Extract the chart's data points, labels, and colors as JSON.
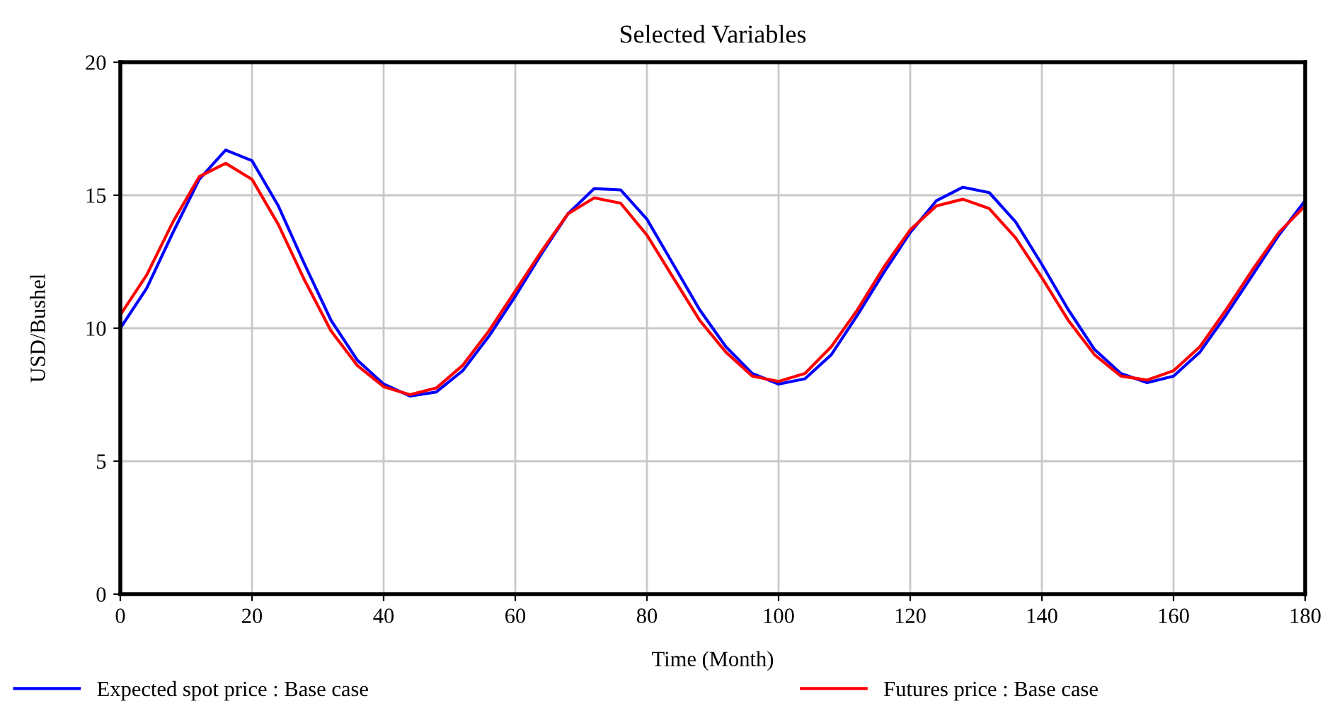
{
  "chart_data": {
    "type": "line",
    "title": "Selected Variables",
    "xlabel": "Time (Month)",
    "ylabel": "USD/Bushel",
    "x": [
      0,
      4,
      8,
      12,
      16,
      20,
      24,
      28,
      32,
      36,
      40,
      44,
      48,
      52,
      56,
      60,
      64,
      68,
      72,
      76,
      80,
      84,
      88,
      92,
      96,
      100,
      104,
      108,
      112,
      116,
      120,
      124,
      128,
      132,
      136,
      140,
      144,
      148,
      152,
      156,
      160,
      164,
      168,
      172,
      176,
      180
    ],
    "series": [
      {
        "name": "Expected spot price : Base case",
        "color": "#0000ff",
        "values": [
          10,
          11.5,
          13.6,
          15.6,
          16.7,
          16.3,
          14.6,
          12.4,
          10.3,
          8.8,
          7.9,
          7.45,
          7.6,
          8.4,
          9.7,
          11.2,
          12.8,
          14.3,
          15.25,
          15.2,
          14.1,
          12.4,
          10.7,
          9.3,
          8.3,
          7.9,
          8.1,
          9.0,
          10.5,
          12.1,
          13.6,
          14.8,
          15.3,
          15.1,
          14.0,
          12.4,
          10.7,
          9.2,
          8.3,
          7.95,
          8.2,
          9.1,
          10.5,
          12.0,
          13.5,
          14.8
        ]
      },
      {
        "name": "Futures price : Base case",
        "color": "#ff0000",
        "values": [
          10.5,
          12.0,
          14.0,
          15.7,
          16.2,
          15.6,
          13.9,
          11.8,
          9.9,
          8.6,
          7.8,
          7.5,
          7.75,
          8.6,
          9.9,
          11.4,
          12.9,
          14.3,
          14.9,
          14.7,
          13.5,
          11.9,
          10.3,
          9.1,
          8.2,
          8.0,
          8.3,
          9.3,
          10.7,
          12.3,
          13.7,
          14.6,
          14.85,
          14.5,
          13.4,
          11.9,
          10.3,
          9.0,
          8.2,
          8.05,
          8.4,
          9.3,
          10.7,
          12.2,
          13.6,
          14.6
        ]
      }
    ],
    "xlim": [
      0,
      180
    ],
    "xticks": [
      0,
      20,
      40,
      60,
      80,
      100,
      120,
      140,
      160,
      180
    ],
    "ylim": [
      0,
      20
    ],
    "yticks": [
      0,
      5,
      10,
      15,
      20
    ],
    "grid": true,
    "legend": "bottom",
    "marker": "none",
    "line_style": "solid"
  }
}
